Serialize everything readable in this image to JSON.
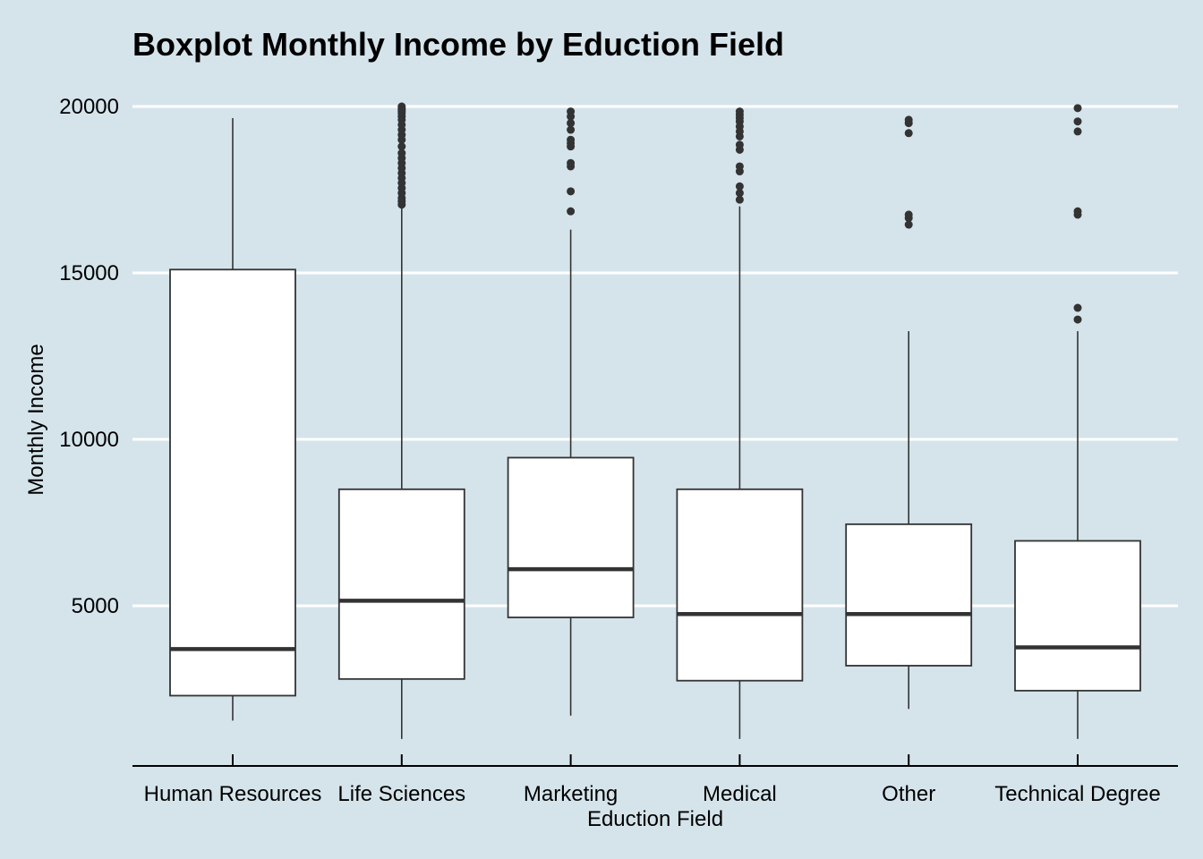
{
  "chart_data": {
    "type": "boxplot",
    "title": "Boxplot Monthly Income by  Eduction Field",
    "xlabel": "Eduction Field",
    "ylabel": "Monthly Income",
    "ylim": [
      0,
      20000
    ],
    "yticks": [
      5000,
      10000,
      15000,
      20000
    ],
    "ytick_labels": [
      "5000",
      "10000",
      "15000",
      "20000"
    ],
    "grid": "horizontal",
    "categories": [
      "Human Resources",
      "Life Sciences",
      "Marketing",
      "Medical",
      "Other",
      "Technical Degree"
    ],
    "boxes": [
      {
        "name": "Human Resources",
        "whisker_low": 1550,
        "q1": 2300,
        "median": 3700,
        "q3": 15100,
        "whisker_high": 19650,
        "outliers": []
      },
      {
        "name": "Life Sciences",
        "whisker_low": 1000,
        "q1": 2800,
        "median": 5150,
        "q3": 8500,
        "whisker_high": 17000,
        "outliers": [
          17050,
          17150,
          17250,
          17400,
          17550,
          17700,
          17850,
          18000,
          18150,
          18300,
          18450,
          18600,
          18800,
          19000,
          19150,
          19300,
          19450,
          19600,
          19700,
          19800,
          19850,
          19900,
          19950,
          20000
        ]
      },
      {
        "name": "Marketing",
        "whisker_low": 1700,
        "q1": 4650,
        "median": 6100,
        "q3": 9450,
        "whisker_high": 16300,
        "outliers": [
          16850,
          17450,
          18200,
          18300,
          18800,
          18900,
          19000,
          19300,
          19500,
          19700,
          19850
        ]
      },
      {
        "name": "Medical",
        "whisker_low": 1000,
        "q1": 2750,
        "median": 4750,
        "q3": 8500,
        "whisker_high": 17000,
        "outliers": [
          17200,
          17400,
          17600,
          18050,
          18200,
          18700,
          18850,
          19100,
          19250,
          19400,
          19550,
          19650,
          19750,
          19850
        ]
      },
      {
        "name": "Other",
        "whisker_low": 1900,
        "q1": 3200,
        "median": 4750,
        "q3": 7450,
        "whisker_high": 13250,
        "outliers": [
          16450,
          16650,
          16750,
          19200,
          19500,
          19600
        ]
      },
      {
        "name": "Technical Degree",
        "whisker_low": 1000,
        "q1": 2450,
        "median": 3750,
        "q3": 6950,
        "whisker_high": 13250,
        "outliers": [
          13600,
          13950,
          16750,
          16850,
          19250,
          19550,
          19950
        ]
      }
    ],
    "colors": {
      "background": "#d5e4eb",
      "grid": "#ffffff",
      "box_fill": "#ffffff",
      "stroke": "#333333",
      "median": "#333333",
      "outlier": "#333333",
      "axis": "#000000"
    }
  }
}
